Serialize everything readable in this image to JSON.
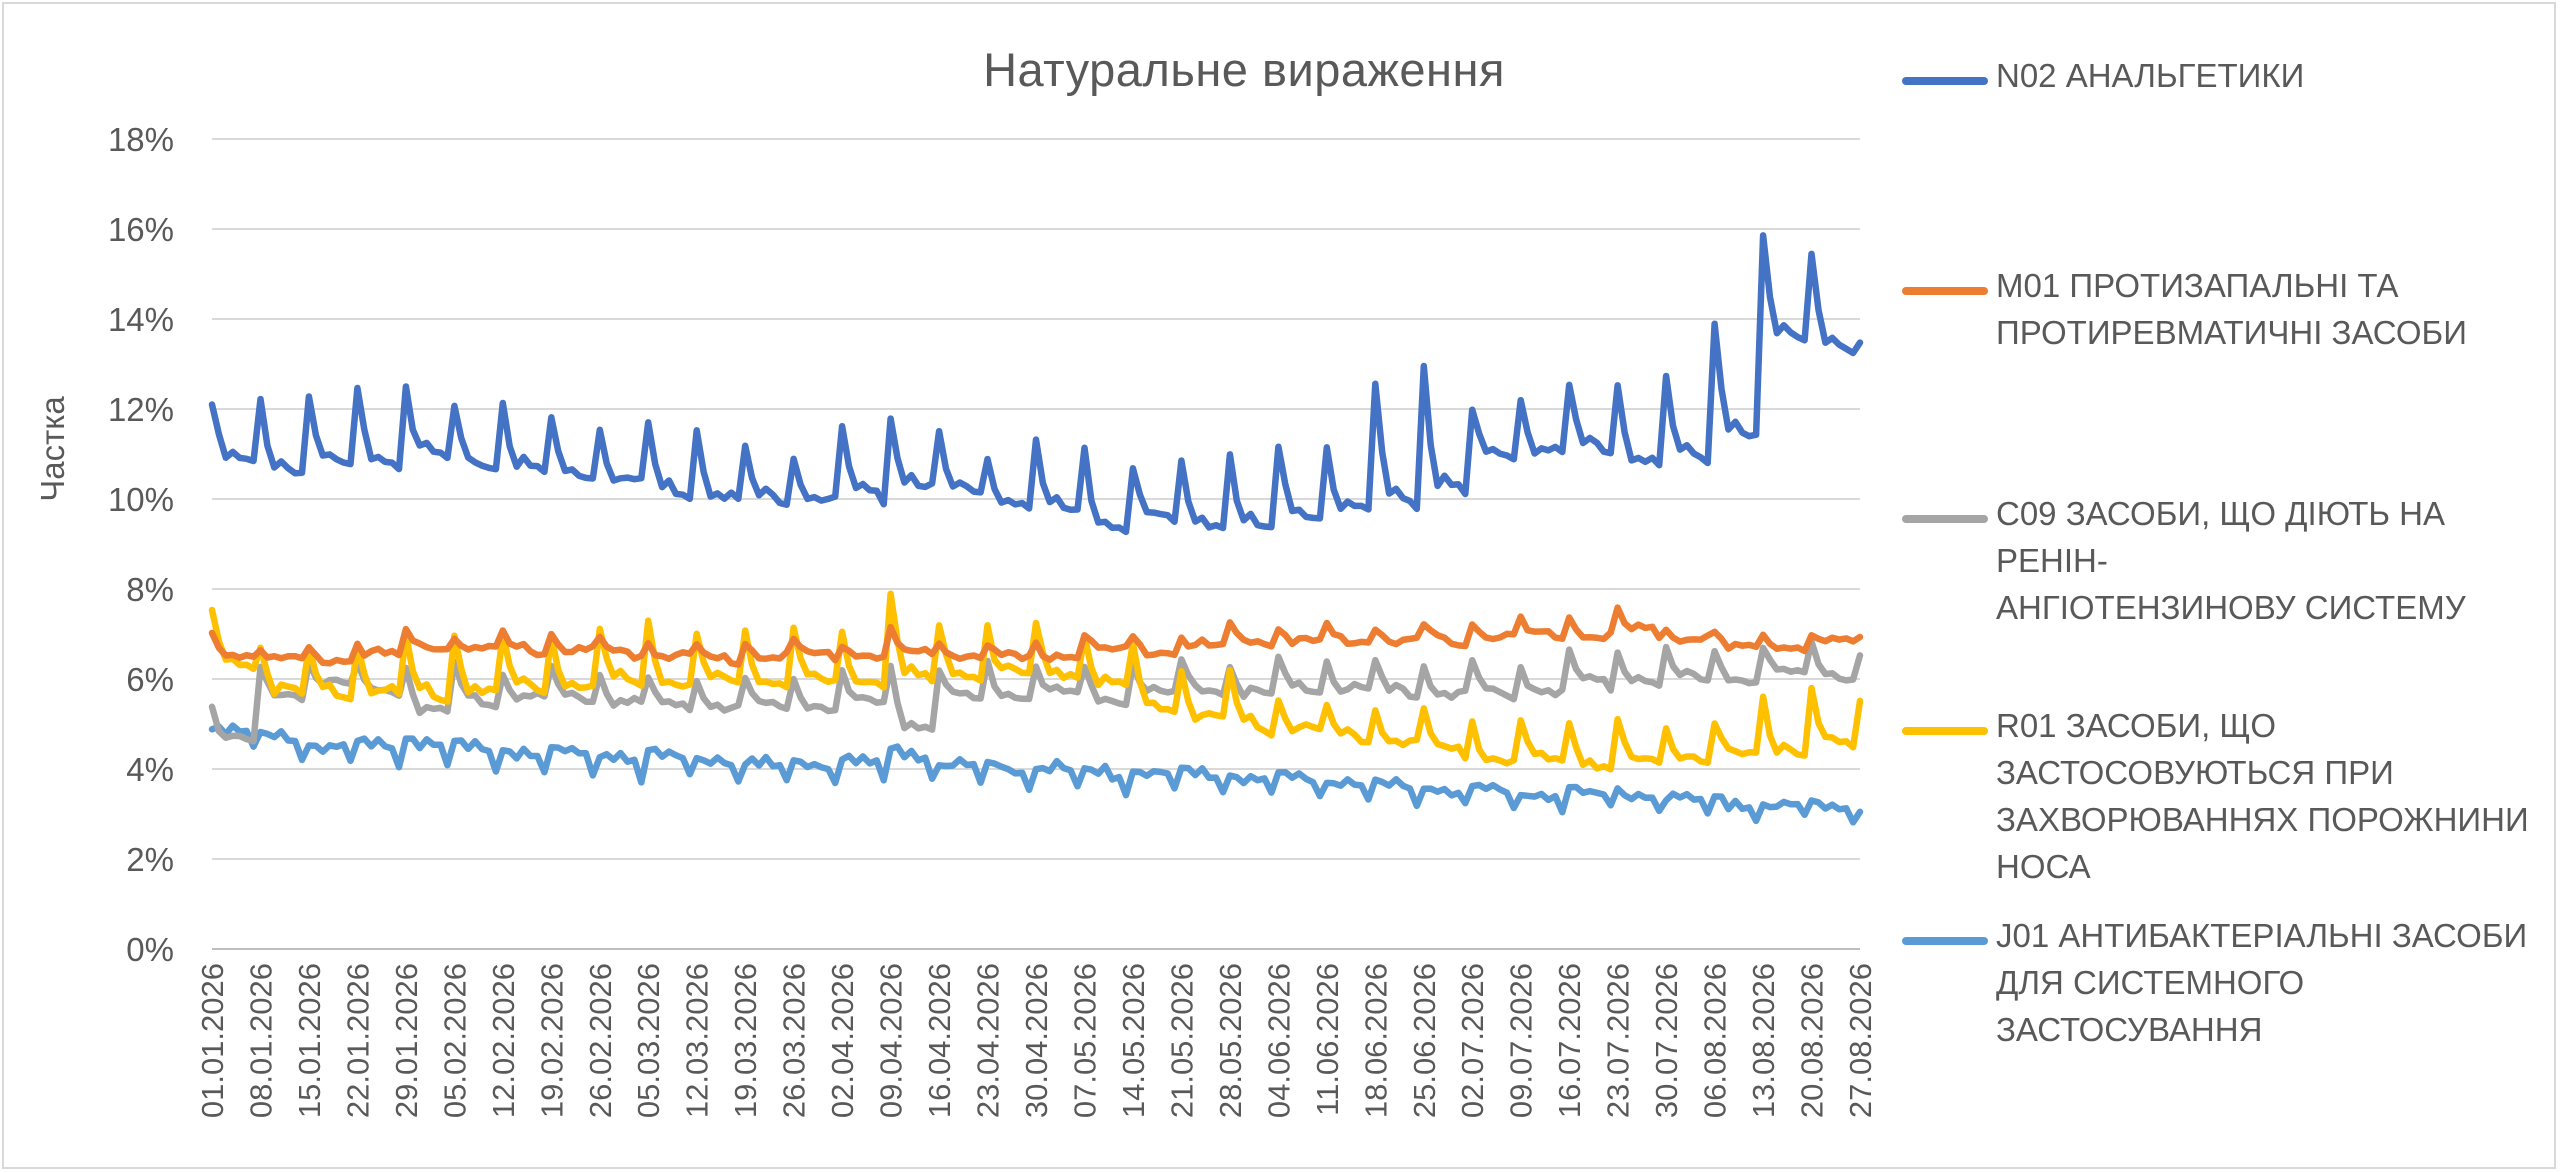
{
  "chart_data": {
    "type": "line",
    "title": "Натуральне вираження",
    "ylabel": "Частка",
    "xlabel": "",
    "ylim": [
      0,
      18
    ],
    "y_ticks": [
      0,
      2,
      4,
      6,
      8,
      10,
      12,
      14,
      16,
      18
    ],
    "y_tick_labels": [
      "0%",
      "2%",
      "4%",
      "6%",
      "8%",
      "10%",
      "12%",
      "14%",
      "16%",
      "18%"
    ],
    "grid": true,
    "legend_position": "right",
    "x_tick_labels": [
      "01.01.2026",
      "08.01.2026",
      "15.01.2026",
      "22.01.2026",
      "29.01.2026",
      "05.02.2026",
      "12.02.2026",
      "19.02.2026",
      "26.02.2026",
      "05.03.2026",
      "12.03.2026",
      "19.03.2026",
      "26.03.2026",
      "02.04.2026",
      "09.04.2026",
      "16.04.2026",
      "23.04.2026",
      "30.04.2026",
      "07.05.2026",
      "14.05.2026",
      "21.05.2026",
      "28.05.2026",
      "04.06.2026",
      "11.06.2026",
      "18.06.2026",
      "25.06.2026",
      "02.07.2026",
      "09.07.2026",
      "16.07.2026",
      "23.07.2026",
      "30.07.2026",
      "06.08.2026",
      "13.08.2026",
      "20.08.2026",
      "27.08.2026"
    ],
    "series": [
      {
        "name": "N02 АНАЛЬГЕТИКИ",
        "color": "#4472c4",
        "weekly": [
          12.1,
          12.2,
          12.3,
          12.4,
          12.6,
          12.0,
          12.2,
          11.8,
          11.6,
          11.7,
          11.6,
          11.1,
          11.0,
          11.6,
          11.9,
          11.4,
          11.0,
          11.2,
          11.1,
          10.8,
          10.8,
          11.0,
          11.1,
          11.2,
          12.5,
          13.0,
          11.9,
          12.3,
          12.5,
          12.6,
          12.7,
          14.0,
          15.8,
          15.5,
          13.4
        ],
        "weekly_base": [
          10.7,
          10.5,
          10.6,
          10.7,
          10.8,
          10.6,
          10.5,
          10.4,
          10.3,
          10.0,
          9.9,
          9.9,
          9.9,
          9.9,
          10.2,
          10.0,
          9.8,
          9.6,
          9.2,
          9.4,
          9.3,
          9.2,
          9.5,
          9.6,
          9.7,
          9.9,
          10.9,
          10.9,
          11.0,
          10.6,
          10.7,
          11.2,
          13.3,
          13.2,
          13.3
        ]
      },
      {
        "name": "M01 ПРОТИЗАПАЛЬНІ ТА ПРОТИРЕВМАТИЧНІ ЗАСОБИ",
        "color": "#ed7d31",
        "weekly": [
          7.0,
          6.7,
          6.6,
          6.8,
          7.0,
          7.0,
          7.0,
          7.0,
          6.9,
          6.8,
          6.7,
          6.8,
          6.8,
          6.8,
          7.1,
          6.8,
          6.8,
          6.7,
          7.0,
          6.9,
          7.0,
          7.2,
          7.2,
          7.2,
          7.2,
          7.2,
          7.3,
          7.3,
          7.4,
          7.5,
          7.2,
          7.0,
          7.0,
          6.9,
          6.9
        ],
        "weekly_base": [
          6.5,
          6.4,
          6.4,
          6.5,
          6.7,
          6.6,
          6.6,
          6.6,
          6.5,
          6.5,
          6.4,
          6.5,
          6.5,
          6.5,
          6.5,
          6.5,
          6.4,
          6.5,
          6.6,
          6.6,
          6.7,
          6.8,
          6.8,
          6.8,
          6.8,
          6.8,
          6.9,
          6.9,
          6.9,
          7.0,
          6.9,
          6.6,
          6.7,
          6.8,
          6.8
        ]
      },
      {
        "name": "C09 ЗАСОБИ, ЩО ДІЮТЬ НА РЕНІН-АНГІОТЕНЗИНОВУ СИСТЕМУ",
        "color": "#a5a5a5",
        "weekly": [
          5.5,
          6.2,
          6.4,
          6.3,
          6.3,
          6.3,
          6.2,
          6.2,
          6.1,
          6.0,
          6.0,
          6.0,
          6.0,
          6.1,
          6.3,
          6.2,
          6.3,
          6.3,
          6.2,
          6.4,
          6.4,
          6.3,
          6.4,
          6.4,
          6.4,
          6.3,
          6.3,
          6.3,
          6.6,
          6.7,
          6.7,
          6.7,
          6.8,
          6.8,
          6.6
        ],
        "weekly_base": [
          4.5,
          5.6,
          5.8,
          5.7,
          5.2,
          5.4,
          5.5,
          5.5,
          5.4,
          5.3,
          5.3,
          5.3,
          5.3,
          5.4,
          4.8,
          5.5,
          5.6,
          5.6,
          5.5,
          5.6,
          5.7,
          5.6,
          5.7,
          5.7,
          5.6,
          5.6,
          5.6,
          5.7,
          5.8,
          5.9,
          5.9,
          5.9,
          6.0,
          6.0,
          6.0
        ]
      },
      {
        "name": "R01 ЗАСОБИ, ЩО ЗАСТОСОВУЮТЬСЯ ПРИ ЗАХВОРЮВАННЯХ ПОРОЖНИНИ НОСА",
        "color": "#ffc000",
        "weekly": [
          7.5,
          6.8,
          6.7,
          6.8,
          6.9,
          7.0,
          7.0,
          7.0,
          7.1,
          7.3,
          7.0,
          7.1,
          7.1,
          7.0,
          8.0,
          7.1,
          7.2,
          7.2,
          7.0,
          6.7,
          6.2,
          6.1,
          5.6,
          5.4,
          5.4,
          5.3,
          5.1,
          5.0,
          5.1,
          5.1,
          5.0,
          5.1,
          5.5,
          5.8,
          5.5
        ],
        "weekly_base": [
          6.2,
          5.6,
          5.6,
          5.6,
          5.5,
          5.6,
          5.7,
          5.7,
          5.8,
          5.7,
          5.8,
          5.8,
          5.8,
          5.8,
          5.8,
          6.0,
          6.0,
          6.0,
          5.7,
          5.2,
          5.0,
          4.8,
          4.8,
          4.6,
          4.5,
          4.3,
          4.1,
          4.1,
          4.0,
          4.0,
          4.2,
          4.2,
          4.3,
          4.4,
          4.6
        ]
      },
      {
        "name": "J01 АНТИБАКТЕРІАЛЬНІ ЗАСОБИ ДЛЯ СИСТЕМНОГО ЗАСТОСУВАННЯ",
        "color": "#5b9bd5",
        "weekly": [
          5.1,
          4.9,
          4.7,
          4.7,
          4.9,
          4.7,
          4.6,
          4.6,
          4.5,
          4.5,
          4.4,
          4.3,
          4.3,
          4.4,
          4.6,
          4.3,
          4.2,
          4.2,
          4.1,
          4.1,
          4.1,
          4.0,
          4.0,
          3.9,
          3.8,
          3.7,
          3.7,
          3.6,
          3.6,
          3.6,
          3.5,
          3.4,
          3.3,
          3.3,
          3.2
        ],
        "weekly_base": [
          4.4,
          4.3,
          4.1,
          4.1,
          4.0,
          4.0,
          3.9,
          3.9,
          3.8,
          3.8,
          3.8,
          3.7,
          3.7,
          3.7,
          3.8,
          3.6,
          3.6,
          3.6,
          3.5,
          3.5,
          3.5,
          3.4,
          3.4,
          3.3,
          3.2,
          3.2,
          3.1,
          3.1,
          3.1,
          3.1,
          3.0,
          2.9,
          2.9,
          2.9,
          2.9
        ]
      }
    ]
  },
  "legend": {
    "items": [
      {
        "label": "N02 АНАЛЬГЕТИКИ",
        "color": "#4472c4"
      },
      {
        "label": "M01 ПРОТИЗАПАЛЬНІ ТА\nПРОТИРЕВМАТИЧНІ ЗАСОБИ",
        "color": "#ed7d31"
      },
      {
        "label": "C09 ЗАСОБИ, ЩО ДІЮТЬ НА РЕНІН-\nАНГІОТЕНЗИНОВУ СИСТЕМУ",
        "color": "#a5a5a5"
      },
      {
        "label": "R01 ЗАСОБИ, ЩО\nЗАСТОСОВУЮТЬСЯ ПРИ\nЗАХВОРЮВАННЯХ ПОРОЖНИНИ\nНОСА",
        "color": "#ffc000"
      },
      {
        "label": "J01 АНТИБАКТЕРІАЛЬНІ ЗАСОБИ\nДЛЯ СИСТЕМНОГО\nЗАСТОСУВАННЯ",
        "color": "#5b9bd5"
      }
    ]
  }
}
